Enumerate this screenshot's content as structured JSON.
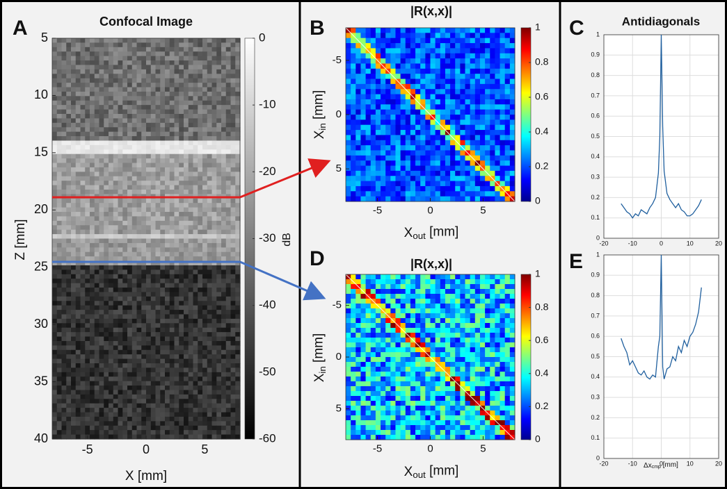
{
  "chart_data": [
    {
      "type": "image",
      "label": "A",
      "title": "Confocal Image",
      "xlabel": "X [mm]",
      "ylabel": "Z [mm]",
      "xlim": [
        -8,
        8
      ],
      "xticks": [
        -5,
        0,
        5
      ],
      "ylim": [
        40,
        5
      ],
      "yticks": [
        5,
        10,
        15,
        20,
        25,
        30,
        35,
        40
      ],
      "colormap": "gray",
      "clim": [
        -60,
        0
      ],
      "cticks": [
        0,
        -10,
        -20,
        -30,
        -40,
        -50,
        -60
      ],
      "clabel": "dB"
    },
    {
      "type": "heatmap",
      "label": "B",
      "title": "|R(x,x)|",
      "xlabel": [
        "X",
        "out",
        " [mm]"
      ],
      "ylabel": [
        "X",
        "in",
        " [mm]"
      ],
      "xlim": [
        -8,
        8
      ],
      "xticks": [
        -5,
        0,
        5
      ],
      "ylim": [
        8,
        -8
      ],
      "yticks": [
        -5,
        0,
        5
      ],
      "colormap": "jet",
      "clim": [
        0,
        1
      ],
      "cticks": [
        0,
        0.2,
        0.4,
        0.6,
        0.8,
        1
      ]
    },
    {
      "type": "line",
      "label": "C",
      "title": "Antidiagonals",
      "color": "#1f5f9e",
      "grid": true,
      "xlim": [
        -20,
        20
      ],
      "xticks": [
        -20,
        -10,
        0,
        10,
        20
      ],
      "ylim": [
        0,
        1
      ],
      "yticks": [
        0,
        0.1,
        0.2,
        0.3,
        0.4,
        0.5,
        0.6,
        0.7,
        0.8,
        0.9,
        1
      ],
      "x": [
        -14,
        -13,
        -12,
        -11,
        -10,
        -9,
        -8,
        -7,
        -6,
        -5,
        -4,
        -3,
        -2,
        -1,
        -0.5,
        0,
        0.5,
        1,
        2,
        3,
        4,
        5,
        6,
        7,
        8,
        9,
        10,
        11,
        12,
        13,
        14
      ],
      "values": [
        0.17,
        0.15,
        0.13,
        0.12,
        0.1,
        0.12,
        0.11,
        0.14,
        0.13,
        0.12,
        0.15,
        0.17,
        0.2,
        0.32,
        0.5,
        1.0,
        0.55,
        0.33,
        0.22,
        0.19,
        0.17,
        0.15,
        0.17,
        0.14,
        0.13,
        0.11,
        0.11,
        0.12,
        0.14,
        0.16,
        0.19
      ]
    },
    {
      "type": "heatmap",
      "label": "D",
      "title": "|R(x,x)|",
      "xlabel": [
        "X",
        "out",
        " [mm]"
      ],
      "ylabel": [
        "X",
        "in",
        " [mm]"
      ],
      "xlim": [
        -8,
        8
      ],
      "xticks": [
        -5,
        0,
        5
      ],
      "ylim": [
        8,
        -8
      ],
      "yticks": [
        -5,
        0,
        5
      ],
      "colormap": "jet",
      "clim": [
        0,
        1
      ],
      "cticks": [
        0,
        0.2,
        0.4,
        0.6,
        0.8,
        1
      ]
    },
    {
      "type": "line",
      "label": "E",
      "xlabel": [
        "Δx",
        "cmp",
        " [mm]"
      ],
      "color": "#1f5f9e",
      "grid": true,
      "xlim": [
        -20,
        20
      ],
      "xticks": [
        -20,
        -10,
        0,
        10,
        20
      ],
      "ylim": [
        0,
        1
      ],
      "yticks": [
        0,
        0.1,
        0.2,
        0.3,
        0.4,
        0.5,
        0.6,
        0.7,
        0.8,
        0.9,
        1
      ],
      "x": [
        -14,
        -13,
        -12,
        -11,
        -10,
        -9,
        -8,
        -7,
        -6,
        -5,
        -4,
        -3,
        -2,
        -1,
        -0.5,
        0,
        0.5,
        1,
        2,
        3,
        4,
        5,
        6,
        7,
        8,
        9,
        10,
        11,
        12,
        13,
        14
      ],
      "values": [
        0.59,
        0.55,
        0.52,
        0.46,
        0.48,
        0.45,
        0.42,
        0.41,
        0.43,
        0.4,
        0.39,
        0.41,
        0.4,
        0.55,
        0.6,
        1.0,
        0.45,
        0.39,
        0.44,
        0.45,
        0.5,
        0.48,
        0.55,
        0.52,
        0.58,
        0.55,
        0.6,
        0.62,
        0.66,
        0.72,
        0.84
      ]
    }
  ]
}
